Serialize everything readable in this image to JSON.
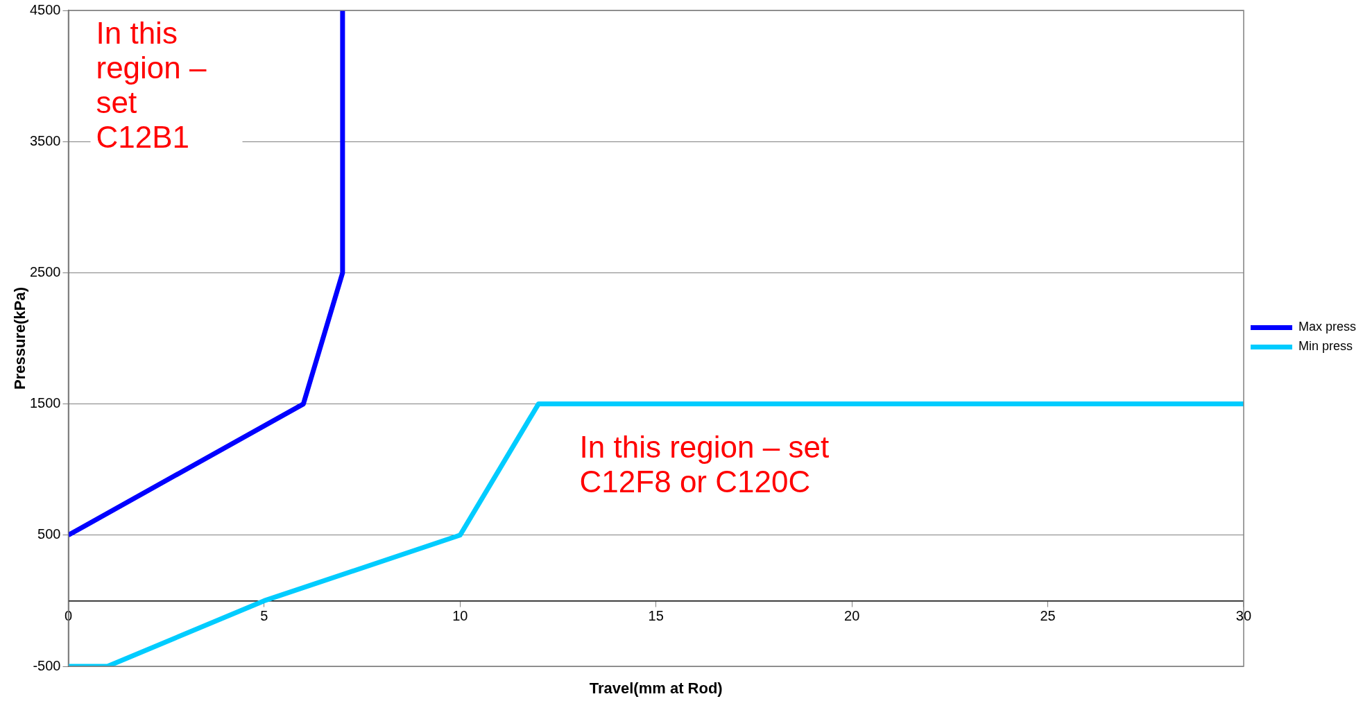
{
  "chart_data": {
    "type": "line",
    "xlabel": "Travel(mm at Rod)",
    "ylabel": "Pressure(kPa)",
    "xlim": [
      0,
      30
    ],
    "xticks": [
      0,
      5,
      10,
      15,
      20,
      25,
      30
    ],
    "ylim": [
      -500,
      4500
    ],
    "yticks": [
      -500,
      500,
      1500,
      2500,
      3500,
      4500
    ],
    "grid": "y",
    "legend": "right",
    "marker": "none",
    "line_style": "solid",
    "series": [
      {
        "name": "Max press",
        "color": "#0000ff",
        "x": [
          0,
          6,
          7,
          7
        ],
        "values": [
          500,
          1500,
          2500,
          4500
        ]
      },
      {
        "name": "Min press",
        "color": "#00ccff",
        "x": [
          0,
          1,
          5,
          10,
          12,
          30
        ],
        "values": [
          -500,
          -500,
          0,
          500,
          1500,
          1500
        ]
      }
    ],
    "annotations": [
      "In this region – set C12B1",
      "In this region – set C12F8 or C120C"
    ]
  }
}
